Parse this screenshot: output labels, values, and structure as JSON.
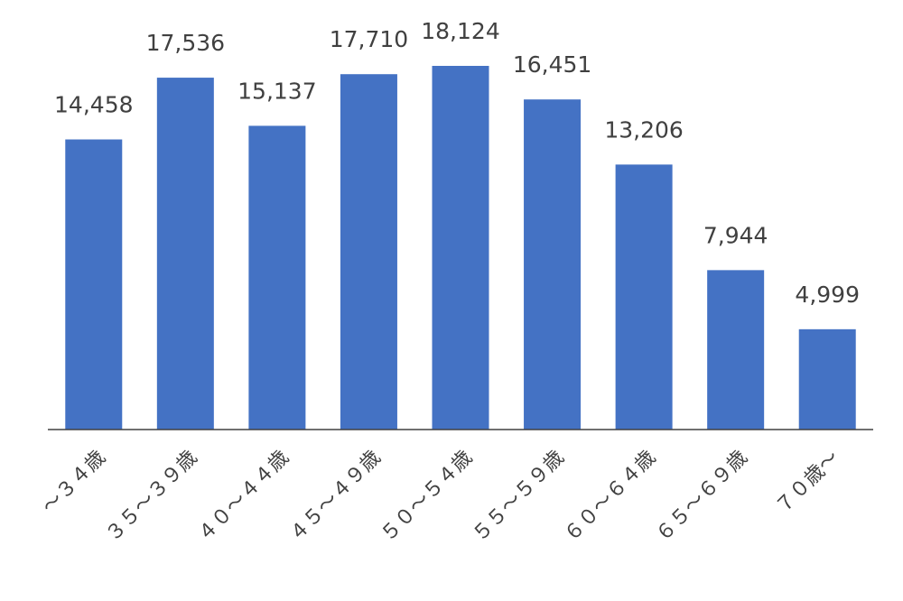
{
  "chart_data": {
    "type": "bar",
    "categories": [
      "～３４歳",
      "３５～３９歳",
      "４０～４４歳",
      "４５～４９歳",
      "５０～５４歳",
      "５５～５９歳",
      "６０～６４歳",
      "６５～６９歳",
      "７０歳～"
    ],
    "values": [
      14458,
      17536,
      15137,
      17710,
      18124,
      16451,
      13206,
      7944,
      4999
    ],
    "value_labels": [
      "14,458",
      "17,536",
      "15,137",
      "17,710",
      "18,124",
      "16,451",
      "13,206",
      "7,944",
      "4,999"
    ],
    "color": "#4472c4"
  }
}
